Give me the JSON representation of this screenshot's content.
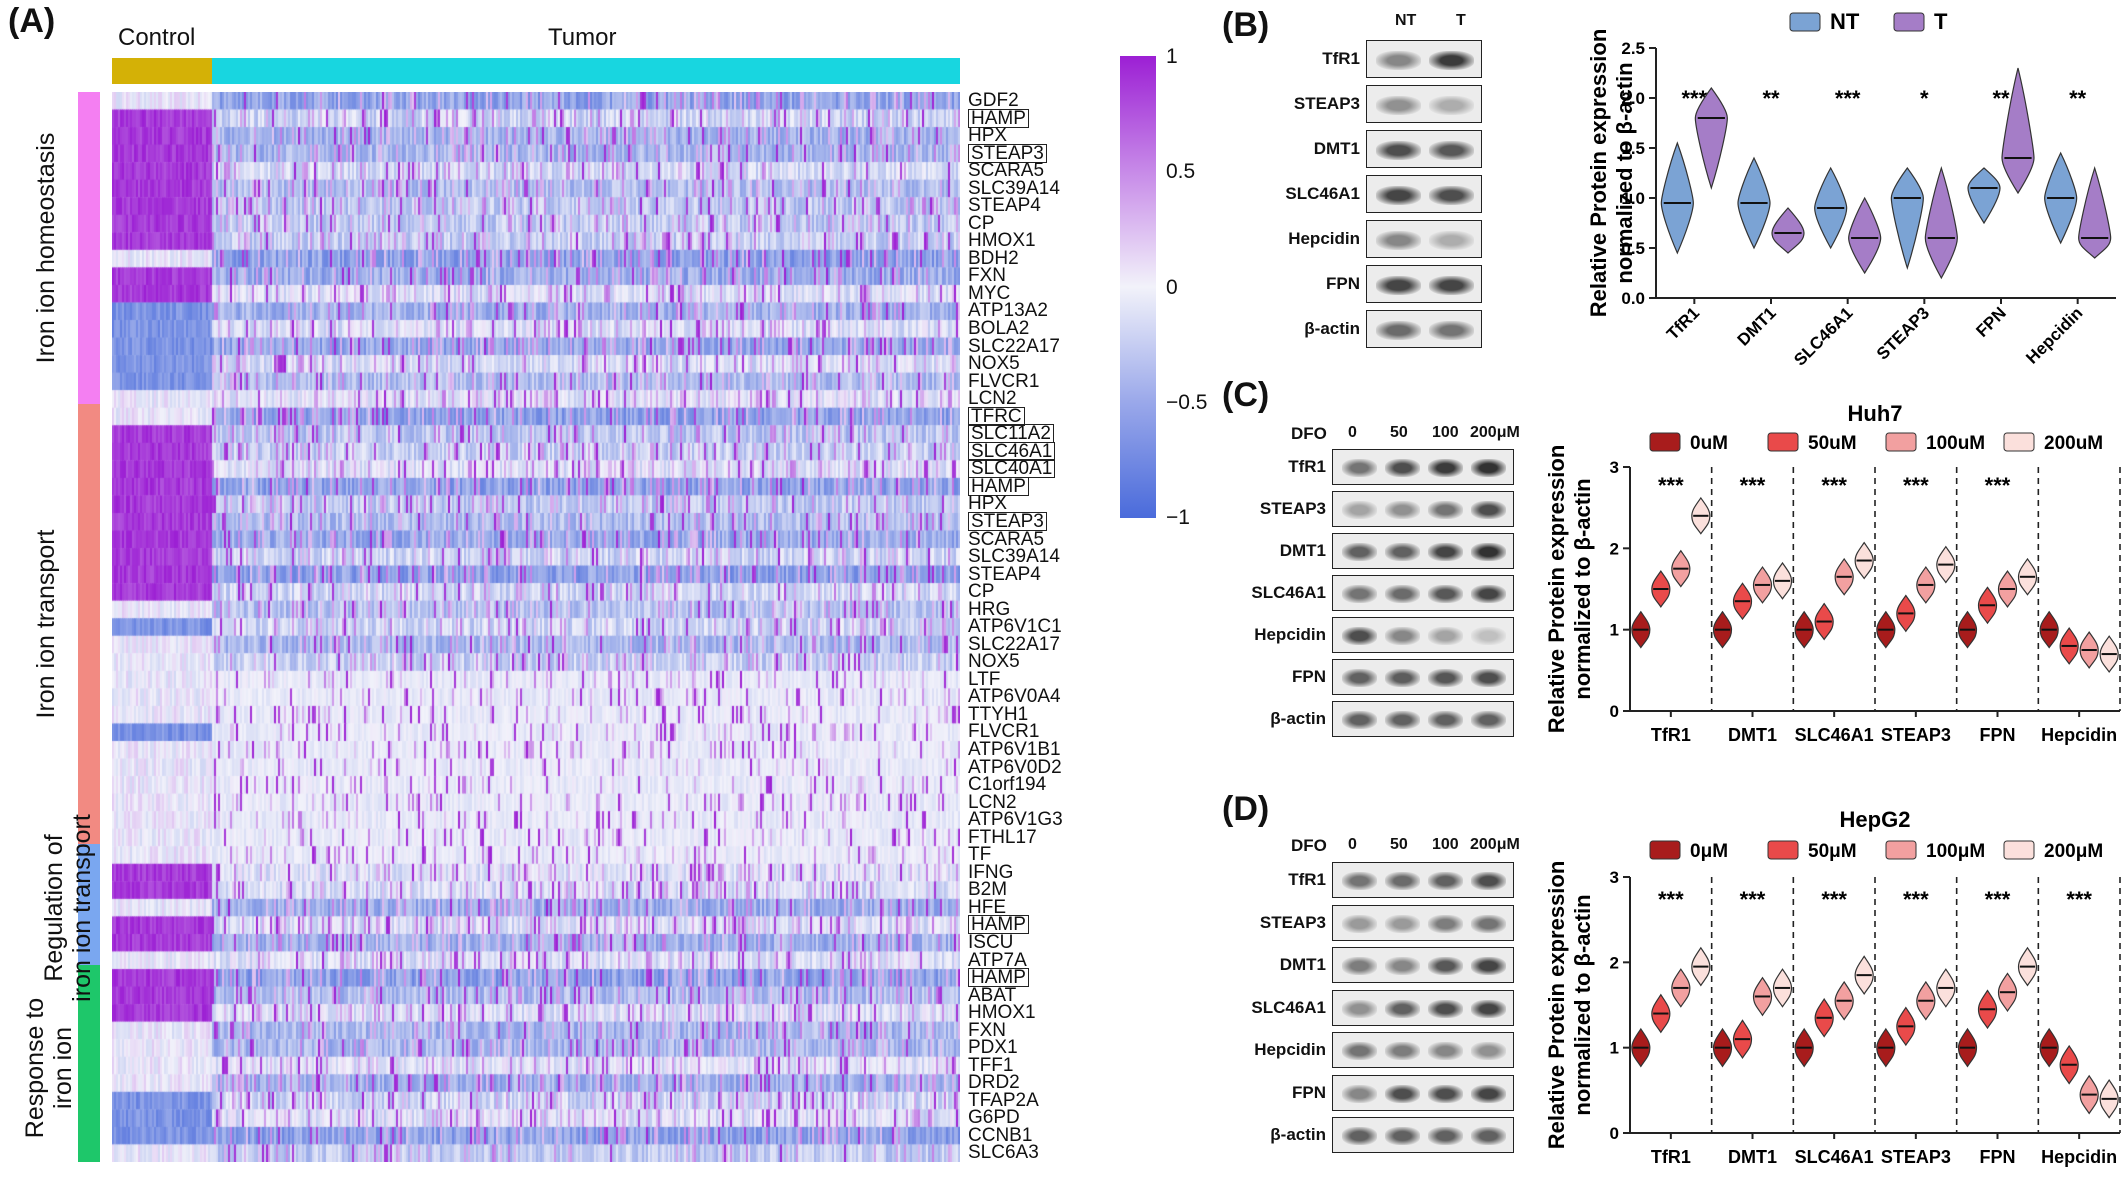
{
  "panel_A": {
    "label": "(A)",
    "group_labels": {
      "control": "Control",
      "tumor": "Tumor"
    },
    "colors": {
      "control": "#d4b106",
      "tumor": "#18d6e0",
      "high": "#9c1fd4",
      "mid": "#f2f2fa",
      "low": "#4a6bdb"
    },
    "colorbar": {
      "ticks": [
        "1",
        "0.5",
        "0",
        "−0.5",
        "−1"
      ]
    },
    "categories": [
      {
        "label": "Iron ion homeostasis",
        "color": "#f47ff2"
      },
      {
        "label": "Iron ion transport",
        "color": "#f28a82"
      },
      {
        "label": "Regulation of\niron ion transport",
        "color": "#7aa7f0"
      },
      {
        "label": "Response to\niron ion",
        "color": "#1ec76a"
      }
    ],
    "genes": [
      "GDF2",
      "HAMP",
      "HPX",
      "STEAP3",
      "SCARA5",
      "SLC39A14",
      "STEAP4",
      "CP",
      "HMOX1",
      "BDH2",
      "FXN",
      "MYC",
      "ATP13A2",
      "BOLA2",
      "SLC22A17",
      "NOX5",
      "FLVCR1",
      "LCN2",
      "TFRC",
      "SLC11A2",
      "SLC46A1",
      "SLC40A1",
      "HAMP",
      "HPX",
      "STEAP3",
      "SCARA5",
      "SLC39A14",
      "STEAP4",
      "CP",
      "HRG",
      "ATP6V1C1",
      "SLC22A17",
      "NOX5",
      "LTF",
      "ATP6V0A4",
      "TTYH1",
      "FLVCR1",
      "ATP6V1B1",
      "ATP6V0D2",
      "C1orf194",
      "LCN2",
      "ATP6V1G3",
      "FTHL17",
      "TF",
      "IFNG",
      "B2M",
      "HFE",
      "HAMP",
      "ISCU",
      "ATP7A",
      "HAMP",
      "ABAT",
      "HMOX1",
      "FXN",
      "PDX1",
      "TFF1",
      "DRD2",
      "TFAP2A",
      "G6PD",
      "CCNB1",
      "SLC6A3"
    ],
    "boxed_genes_index": [
      1,
      3,
      18,
      19,
      20,
      21,
      22,
      24,
      47,
      50
    ]
  },
  "panel_B": {
    "label": "(B)",
    "lanes": [
      "NT",
      "T"
    ],
    "blots": [
      "TfR1",
      "STEAP3",
      "DMT1",
      "SLC46A1",
      "Hepcidin",
      "FPN",
      "β-actin"
    ],
    "chart_data": {
      "type": "violin",
      "ylabel": "Relative Protein expression normalized to β-actin",
      "ylim": [
        0.0,
        2.5
      ],
      "yticks": [
        "0.0",
        "0.5",
        "1.0",
        "1.5",
        "2.0",
        "2.5"
      ],
      "categories": [
        "TfR1",
        "DMT1",
        "SLC46A1",
        "STEAP3",
        "FPN",
        "Hepcidin"
      ],
      "significance": [
        "***",
        "**",
        "***",
        "*",
        "**",
        "**"
      ],
      "series": [
        {
          "name": "NT",
          "color": "#7ba3d4",
          "medians": [
            0.95,
            0.95,
            0.9,
            1.0,
            1.1,
            1.0
          ],
          "ranges": [
            [
              0.45,
              1.55
            ],
            [
              0.5,
              1.4
            ],
            [
              0.5,
              1.3
            ],
            [
              0.3,
              1.3
            ],
            [
              0.75,
              1.3
            ],
            [
              0.55,
              1.45
            ]
          ]
        },
        {
          "name": "T",
          "color": "#a57dc7",
          "medians": [
            1.8,
            0.65,
            0.6,
            0.6,
            1.4,
            0.6
          ],
          "ranges": [
            [
              1.1,
              2.1
            ],
            [
              0.45,
              0.9
            ],
            [
              0.25,
              1.0
            ],
            [
              0.2,
              1.3
            ],
            [
              1.05,
              2.3
            ],
            [
              0.4,
              1.3
            ]
          ]
        }
      ]
    }
  },
  "panel_C": {
    "label": "(C)",
    "title": "Huh7",
    "dfo_label": "DFO",
    "lanes": [
      "0",
      "50",
      "100",
      "200μM"
    ],
    "blots": [
      "TfR1",
      "STEAP3",
      "DMT1",
      "SLC46A1",
      "Hepcidin",
      "FPN",
      "β-actin"
    ],
    "chart_data": {
      "type": "violin",
      "ylabel": "Relative Protein expression normalized to β-actin",
      "ylim": [
        0,
        3
      ],
      "yticks": [
        "0",
        "1",
        "2",
        "3"
      ],
      "categories": [
        "TfR1",
        "DMT1",
        "SLC46A1",
        "STEAP3",
        "FPN",
        "Hepcidin"
      ],
      "significance": [
        "***",
        "***",
        "***",
        "***",
        "***",
        ""
      ],
      "series": [
        {
          "name": "0uM",
          "color": "#a81c1c",
          "medians": [
            1.0,
            1.0,
            1.0,
            1.0,
            1.0,
            1.0
          ]
        },
        {
          "name": "50uM",
          "color": "#e94a4a",
          "medians": [
            1.5,
            1.35,
            1.1,
            1.2,
            1.3,
            0.8
          ]
        },
        {
          "name": "100uM",
          "color": "#f2a0a0",
          "medians": [
            1.75,
            1.55,
            1.65,
            1.55,
            1.5,
            0.75
          ]
        },
        {
          "name": "200uM",
          "color": "#fbe0dc",
          "medians": [
            2.4,
            1.6,
            1.85,
            1.8,
            1.65,
            0.7
          ]
        }
      ]
    }
  },
  "panel_D": {
    "label": "(D)",
    "title": "HepG2",
    "dfo_label": "DFO",
    "lanes": [
      "0",
      "50",
      "100",
      "200μM"
    ],
    "blots": [
      "TfR1",
      "STEAP3",
      "DMT1",
      "SLC46A1",
      "Hepcidin",
      "FPN",
      "β-actin"
    ],
    "chart_data": {
      "type": "violin",
      "ylabel": "Relative Protein expression normalized to β-actin",
      "ylim": [
        0,
        3
      ],
      "yticks": [
        "0",
        "1",
        "2",
        "3"
      ],
      "categories": [
        "TfR1",
        "DMT1",
        "SLC46A1",
        "STEAP3",
        "FPN",
        "Hepcidin"
      ],
      "significance": [
        "***",
        "***",
        "***",
        "***",
        "***",
        "***"
      ],
      "series": [
        {
          "name": "0μM",
          "color": "#a81c1c",
          "medians": [
            1.0,
            1.0,
            1.0,
            1.0,
            1.0,
            1.0
          ]
        },
        {
          "name": "50μM",
          "color": "#e94a4a",
          "medians": [
            1.4,
            1.1,
            1.35,
            1.25,
            1.45,
            0.8
          ]
        },
        {
          "name": "100μM",
          "color": "#f2a0a0",
          "medians": [
            1.7,
            1.6,
            1.55,
            1.55,
            1.65,
            0.45
          ]
        },
        {
          "name": "200μM",
          "color": "#fbe0dc",
          "medians": [
            1.95,
            1.7,
            1.85,
            1.7,
            1.95,
            0.4
          ]
        }
      ]
    }
  }
}
